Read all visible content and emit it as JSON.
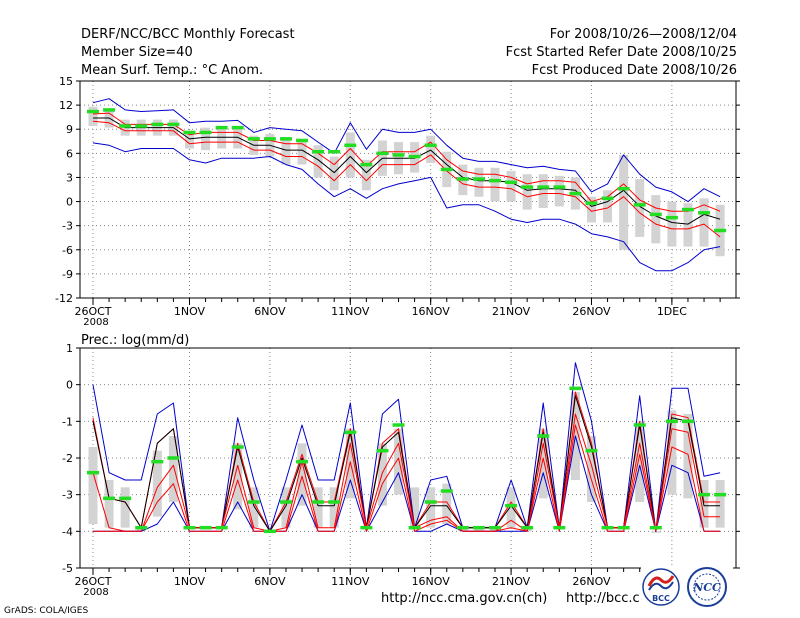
{
  "header": {
    "title": "DERF/NCC/BCC Monthly Forecast",
    "member": "Member Size=40",
    "variable": "Mean Surf. Temp.: °C Anom.",
    "period": "For 2008/10/26—2008/12/04",
    "refer": "Fcst Started Refer Date 2008/10/25",
    "produced": "Fcst Produced Date 2008/10/26"
  },
  "footer": {
    "grads": "GrADS: COLA/IGES",
    "url1": "http://ncc.cma.gov.cn(ch)",
    "url2": "http://bcc.c",
    "logo_bcc": "BCC",
    "logo_ncc": "NCC"
  },
  "colors": {
    "envelope": "#0000cc",
    "mean": "#000000",
    "quartile": "#ff0000",
    "obs": "#22dd22",
    "box": "#d3d3d3",
    "grid": "#888888"
  },
  "chart_data": [
    {
      "type": "line",
      "title": "Mean Surf. Temp.: °C Anom.",
      "ylim": [
        -12,
        15
      ],
      "yticks": [
        -12,
        -9,
        -6,
        -3,
        0,
        3,
        6,
        9,
        12,
        15
      ],
      "xtick_labels": [
        "26OCT",
        "1NOV",
        "6NOV",
        "11NOV",
        "16NOV",
        "21NOV",
        "26NOV",
        "1DEC"
      ],
      "xtick_day_index": [
        0,
        6,
        11,
        16,
        21,
        26,
        31,
        36
      ],
      "year_label": "2008",
      "x_day_index": [
        0,
        1,
        2,
        3,
        4,
        5,
        6,
        7,
        8,
        9,
        10,
        11,
        12,
        13,
        14,
        15,
        16,
        17,
        18,
        19,
        20,
        21,
        22,
        23,
        24,
        25,
        26,
        27,
        28,
        29,
        30,
        31,
        32,
        33,
        34,
        35,
        36,
        37,
        38,
        39
      ],
      "series": [
        {
          "name": "ensemble max",
          "values": [
            12.3,
            12.8,
            11.4,
            11.2,
            11.3,
            11.4,
            9.8,
            10.0,
            10.0,
            10.1,
            8.6,
            9.2,
            9.0,
            8.8,
            7.4,
            6.0,
            9.8,
            6.5,
            9.0,
            8.6,
            8.6,
            9.0,
            7.0,
            5.4,
            5.0,
            5.0,
            4.6,
            4.2,
            4.4,
            4.0,
            3.8,
            1.2,
            2.2,
            5.8,
            3.4,
            1.8,
            1.2,
            0.0,
            1.6,
            0.6
          ]
        },
        {
          "name": "75th percentile",
          "values": [
            10.9,
            11.0,
            9.6,
            9.6,
            9.6,
            9.6,
            8.3,
            8.6,
            8.6,
            8.6,
            7.6,
            7.6,
            7.2,
            7.2,
            6.0,
            4.6,
            6.6,
            4.4,
            6.2,
            6.2,
            6.2,
            7.4,
            5.2,
            3.8,
            3.4,
            3.4,
            3.0,
            2.2,
            2.6,
            2.6,
            2.4,
            0.0,
            0.6,
            2.2,
            0.2,
            -0.8,
            -1.2,
            -1.2,
            -0.4,
            -1.2
          ]
        },
        {
          "name": "ensemble mean",
          "values": [
            10.4,
            10.4,
            9.2,
            9.2,
            9.2,
            9.2,
            7.8,
            8.0,
            8.0,
            8.0,
            7.0,
            7.0,
            6.4,
            6.4,
            5.2,
            3.6,
            5.6,
            3.6,
            5.4,
            5.4,
            5.4,
            6.4,
            4.6,
            3.0,
            2.6,
            2.6,
            2.4,
            1.4,
            1.6,
            1.6,
            1.4,
            -0.6,
            0.0,
            1.4,
            -0.6,
            -1.8,
            -2.6,
            -2.8,
            -1.6,
            -2.2
          ]
        },
        {
          "name": "25th percentile",
          "values": [
            10.0,
            9.8,
            8.8,
            8.8,
            8.8,
            8.8,
            7.2,
            7.4,
            7.4,
            7.4,
            6.4,
            6.4,
            5.6,
            5.6,
            4.4,
            2.6,
            4.6,
            2.6,
            4.6,
            4.6,
            4.6,
            5.8,
            3.8,
            2.2,
            1.8,
            1.8,
            1.6,
            0.6,
            1.0,
            1.0,
            0.6,
            -1.2,
            -0.8,
            0.6,
            -1.4,
            -2.8,
            -3.4,
            -3.4,
            -2.8,
            -4.4
          ]
        },
        {
          "name": "ensemble min",
          "values": [
            7.3,
            7.0,
            6.2,
            6.6,
            6.6,
            6.6,
            5.2,
            4.8,
            5.4,
            5.4,
            5.4,
            5.6,
            4.6,
            4.0,
            2.2,
            0.6,
            1.6,
            0.4,
            1.6,
            2.2,
            2.6,
            3.0,
            -0.8,
            -0.4,
            -0.4,
            -1.2,
            -2.2,
            -2.6,
            -2.2,
            -2.2,
            -2.8,
            -4.0,
            -4.4,
            -5.0,
            -7.6,
            -8.6,
            -8.6,
            -7.6,
            -6.0,
            -5.6
          ]
        },
        {
          "name": "box top",
          "values": [
            11.8,
            11.6,
            10.2,
            10.2,
            10.2,
            10.2,
            8.8,
            9.2,
            9.2,
            9.2,
            8.2,
            8.4,
            8.0,
            7.8,
            7.0,
            5.6,
            8.6,
            5.2,
            7.6,
            7.4,
            7.4,
            8.2,
            6.2,
            4.6,
            4.2,
            4.2,
            3.8,
            3.4,
            3.4,
            3.2,
            3.0,
            0.6,
            1.4,
            5.8,
            2.8,
            0.8,
            0.0,
            -0.2,
            0.4,
            -0.4
          ]
        },
        {
          "name": "box bottom",
          "values": [
            9.4,
            9.2,
            8.2,
            8.2,
            8.2,
            8.2,
            6.6,
            6.4,
            6.6,
            6.6,
            5.8,
            5.6,
            4.6,
            4.6,
            3.0,
            1.4,
            3.0,
            1.4,
            3.2,
            3.4,
            3.6,
            4.8,
            1.8,
            0.8,
            0.6,
            0.0,
            0.0,
            -1.0,
            -0.8,
            -0.6,
            -1.0,
            -2.6,
            -2.6,
            -6.0,
            -4.4,
            -5.2,
            -5.6,
            -5.6,
            -5.6,
            -6.8
          ]
        },
        {
          "name": "observed",
          "values": [
            11.2,
            11.4,
            9.4,
            9.4,
            9.6,
            9.6,
            8.6,
            8.6,
            9.2,
            9.2,
            7.8,
            7.8,
            7.8,
            7.6,
            6.2,
            6.2,
            7.0,
            4.6,
            6.0,
            5.8,
            5.6,
            7.0,
            4.0,
            2.8,
            2.8,
            2.6,
            2.4,
            1.8,
            1.8,
            1.8,
            1.0,
            -0.2,
            0.4,
            1.6,
            -0.4,
            -1.6,
            -2.0,
            -1.0,
            -1.4,
            -3.6
          ]
        }
      ]
    },
    {
      "type": "line",
      "title": "Prec.: log(mm/d)",
      "ylim": [
        -5,
        1
      ],
      "yticks": [
        -5,
        -4,
        -3,
        -2,
        -1,
        0,
        1
      ],
      "xtick_labels": [
        "26OCT",
        "1NOV",
        "6NOV",
        "11NOV",
        "16NOV",
        "21NOV",
        "26NOV",
        "1DEC"
      ],
      "xtick_day_index": [
        0,
        6,
        11,
        16,
        21,
        26,
        31,
        36
      ],
      "year_label": "2008",
      "x_day_index": [
        0,
        1,
        2,
        3,
        4,
        5,
        6,
        7,
        8,
        9,
        10,
        11,
        12,
        13,
        14,
        15,
        16,
        17,
        18,
        19,
        20,
        21,
        22,
        23,
        24,
        25,
        26,
        27,
        28,
        29,
        30,
        31,
        32,
        33,
        34,
        35,
        36,
        37,
        38,
        39
      ],
      "series": [
        {
          "name": "ensemble max",
          "values": [
            0.0,
            -2.4,
            -2.6,
            -2.6,
            -0.8,
            -0.5,
            -3.9,
            -3.9,
            -3.9,
            -0.9,
            -2.6,
            -4.0,
            -2.6,
            -1.1,
            -2.6,
            -2.6,
            -0.5,
            -3.9,
            -0.8,
            -0.4,
            -3.9,
            -2.6,
            -2.5,
            -3.9,
            -3.9,
            -3.9,
            -2.6,
            -3.9,
            -0.5,
            -3.9,
            0.6,
            -1.0,
            -3.9,
            -3.9,
            -0.3,
            -4.0,
            -0.1,
            -0.1,
            -2.5,
            -2.4
          ]
        },
        {
          "name": "75th percentile",
          "values": [
            -0.9,
            -3.1,
            -3.2,
            -3.9,
            -1.6,
            -1.2,
            -3.9,
            -3.9,
            -3.9,
            -1.6,
            -3.2,
            -4.0,
            -3.2,
            -1.9,
            -3.2,
            -3.2,
            -1.2,
            -3.9,
            -1.6,
            -1.2,
            -3.9,
            -3.2,
            -3.2,
            -3.9,
            -3.9,
            -3.9,
            -3.2,
            -3.9,
            -1.2,
            -3.9,
            -0.2,
            -1.6,
            -3.9,
            -3.9,
            -1.0,
            -4.0,
            -0.8,
            -0.9,
            -3.2,
            -3.2
          ]
        },
        {
          "name": "ensemble mean",
          "values": [
            -1.0,
            -3.1,
            -3.2,
            -3.9,
            -1.6,
            -1.2,
            -3.9,
            -3.9,
            -3.9,
            -1.7,
            -3.3,
            -4.0,
            -3.3,
            -2.0,
            -3.3,
            -3.3,
            -1.3,
            -3.9,
            -1.7,
            -1.3,
            -3.9,
            -3.3,
            -3.3,
            -3.9,
            -3.9,
            -3.9,
            -3.3,
            -3.9,
            -1.3,
            -3.9,
            -0.3,
            -1.7,
            -3.9,
            -3.9,
            -1.1,
            -4.0,
            -0.9,
            -1.0,
            -3.3,
            -3.3
          ]
        },
        {
          "name": "25th percentile",
          "values": [
            -2.4,
            -3.9,
            -4.0,
            -4.0,
            -2.8,
            -2.2,
            -3.9,
            -3.9,
            -3.9,
            -2.2,
            -3.9,
            -4.0,
            -3.9,
            -2.1,
            -3.9,
            -3.9,
            -1.6,
            -3.9,
            -2.4,
            -1.6,
            -3.9,
            -3.7,
            -3.6,
            -4.0,
            -4.0,
            -4.0,
            -3.7,
            -4.0,
            -1.6,
            -3.9,
            -0.8,
            -2.2,
            -3.9,
            -3.9,
            -1.6,
            -4.0,
            -1.2,
            -1.3,
            -3.6,
            -3.6
          ]
        },
        {
          "name": "ensemble min",
          "values": [
            -4.0,
            -4.0,
            -4.0,
            -4.0,
            -3.8,
            -3.2,
            -4.0,
            -4.0,
            -4.0,
            -3.2,
            -4.0,
            -4.0,
            -4.0,
            -3.0,
            -4.0,
            -4.0,
            -2.6,
            -4.0,
            -3.2,
            -2.4,
            -4.0,
            -4.0,
            -3.8,
            -4.0,
            -4.0,
            -4.0,
            -4.0,
            -4.0,
            -2.4,
            -4.0,
            -1.4,
            -3.0,
            -4.0,
            -4.0,
            -2.2,
            -4.0,
            -2.2,
            -2.4,
            -4.0,
            -4.0
          ]
        },
        {
          "name": "median",
          "values": [
            -4.0,
            -4.0,
            -4.0,
            -4.0,
            -3.2,
            -2.7,
            -4.0,
            -4.0,
            -4.0,
            -2.6,
            -4.0,
            -4.0,
            -4.0,
            -2.5,
            -4.0,
            -4.0,
            -2.1,
            -4.0,
            -2.7,
            -2.0,
            -4.0,
            -3.8,
            -3.7,
            -4.0,
            -4.0,
            -4.0,
            -3.9,
            -4.0,
            -2.0,
            -4.0,
            -1.1,
            -2.6,
            -4.0,
            -4.0,
            -1.9,
            -4.0,
            -1.7,
            -1.9,
            -4.0,
            -4.0
          ]
        },
        {
          "name": "box top",
          "values": [
            -1.7,
            -2.6,
            -2.8,
            -3.9,
            -1.8,
            -1.4,
            -3.9,
            -3.9,
            -3.9,
            -1.6,
            -2.8,
            -4.0,
            -2.8,
            -1.6,
            -2.8,
            -2.8,
            -1.2,
            -3.9,
            -1.6,
            -1.2,
            -2.8,
            -2.8,
            -2.7,
            -3.9,
            -3.9,
            -3.9,
            -2.8,
            -3.9,
            -1.2,
            -3.9,
            -0.2,
            -1.4,
            -3.9,
            -3.9,
            -1.0,
            -4.0,
            -0.7,
            -0.8,
            -2.6,
            -2.6
          ]
        },
        {
          "name": "box bottom",
          "values": [
            -3.8,
            -3.9,
            -3.9,
            -4.0,
            -3.6,
            -3.2,
            -3.9,
            -3.9,
            -3.9,
            -3.4,
            -3.9,
            -4.0,
            -3.9,
            -3.3,
            -3.9,
            -3.9,
            -3.1,
            -3.9,
            -3.3,
            -3.0,
            -3.9,
            -3.9,
            -3.8,
            -4.0,
            -4.0,
            -4.0,
            -3.9,
            -4.0,
            -3.1,
            -3.9,
            -2.6,
            -3.2,
            -3.9,
            -3.9,
            -3.2,
            -4.0,
            -3.0,
            -3.1,
            -3.9,
            -3.9
          ]
        },
        {
          "name": "observed",
          "values": [
            -2.4,
            -3.1,
            -3.1,
            -3.9,
            -2.1,
            -2.0,
            -3.9,
            -3.9,
            -3.9,
            -1.7,
            -3.2,
            -4.0,
            -3.2,
            -2.1,
            -3.2,
            -3.2,
            -1.3,
            -3.9,
            -1.8,
            -1.1,
            -3.9,
            -3.2,
            -2.9,
            -3.9,
            -3.9,
            -3.9,
            -3.3,
            -3.9,
            -1.4,
            -3.9,
            -0.1,
            -1.8,
            -3.9,
            -3.9,
            -1.1,
            -3.9,
            -1.0,
            -1.0,
            -3.0,
            -3.0
          ]
        }
      ]
    }
  ]
}
